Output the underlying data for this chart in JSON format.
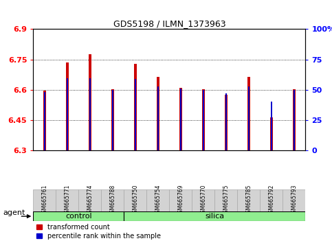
{
  "title": "GDS5198 / ILMN_1373963",
  "samples": [
    "GSM665761",
    "GSM665771",
    "GSM665774",
    "GSM665788",
    "GSM665750",
    "GSM665754",
    "GSM665769",
    "GSM665770",
    "GSM665775",
    "GSM665785",
    "GSM665792",
    "GSM665793"
  ],
  "groups": [
    "control",
    "control",
    "control",
    "control",
    "silica",
    "silica",
    "silica",
    "silica",
    "silica",
    "silica",
    "silica",
    "silica"
  ],
  "red_values": [
    6.595,
    6.735,
    6.775,
    6.605,
    6.73,
    6.665,
    6.61,
    6.605,
    6.575,
    6.665,
    6.465,
    6.605
  ],
  "blue_values": [
    6.591,
    6.656,
    6.657,
    6.601,
    6.655,
    6.618,
    6.607,
    6.601,
    6.583,
    6.618,
    6.543,
    6.601
  ],
  "ymin": 6.3,
  "ymax": 6.9,
  "yticks": [
    6.3,
    6.45,
    6.6,
    6.75,
    6.9
  ],
  "ytick_labels": [
    "6.3",
    "6.45",
    "6.6",
    "6.75",
    "6.9"
  ],
  "right_yticks": [
    0,
    25,
    50,
    75,
    100
  ],
  "right_ytick_labels": [
    "0",
    "25",
    "50",
    "75",
    "100%"
  ],
  "bar_red": "#CC0000",
  "bar_blue": "#0000CC",
  "bar_width": 0.12,
  "blue_bar_width": 0.06,
  "group_bg": "#90EE90",
  "sample_bg": "#D3D3D3",
  "agent_label": "agent",
  "legend_red": "transformed count",
  "legend_blue": "percentile rank within the sample",
  "control_label": "control",
  "silica_label": "silica"
}
